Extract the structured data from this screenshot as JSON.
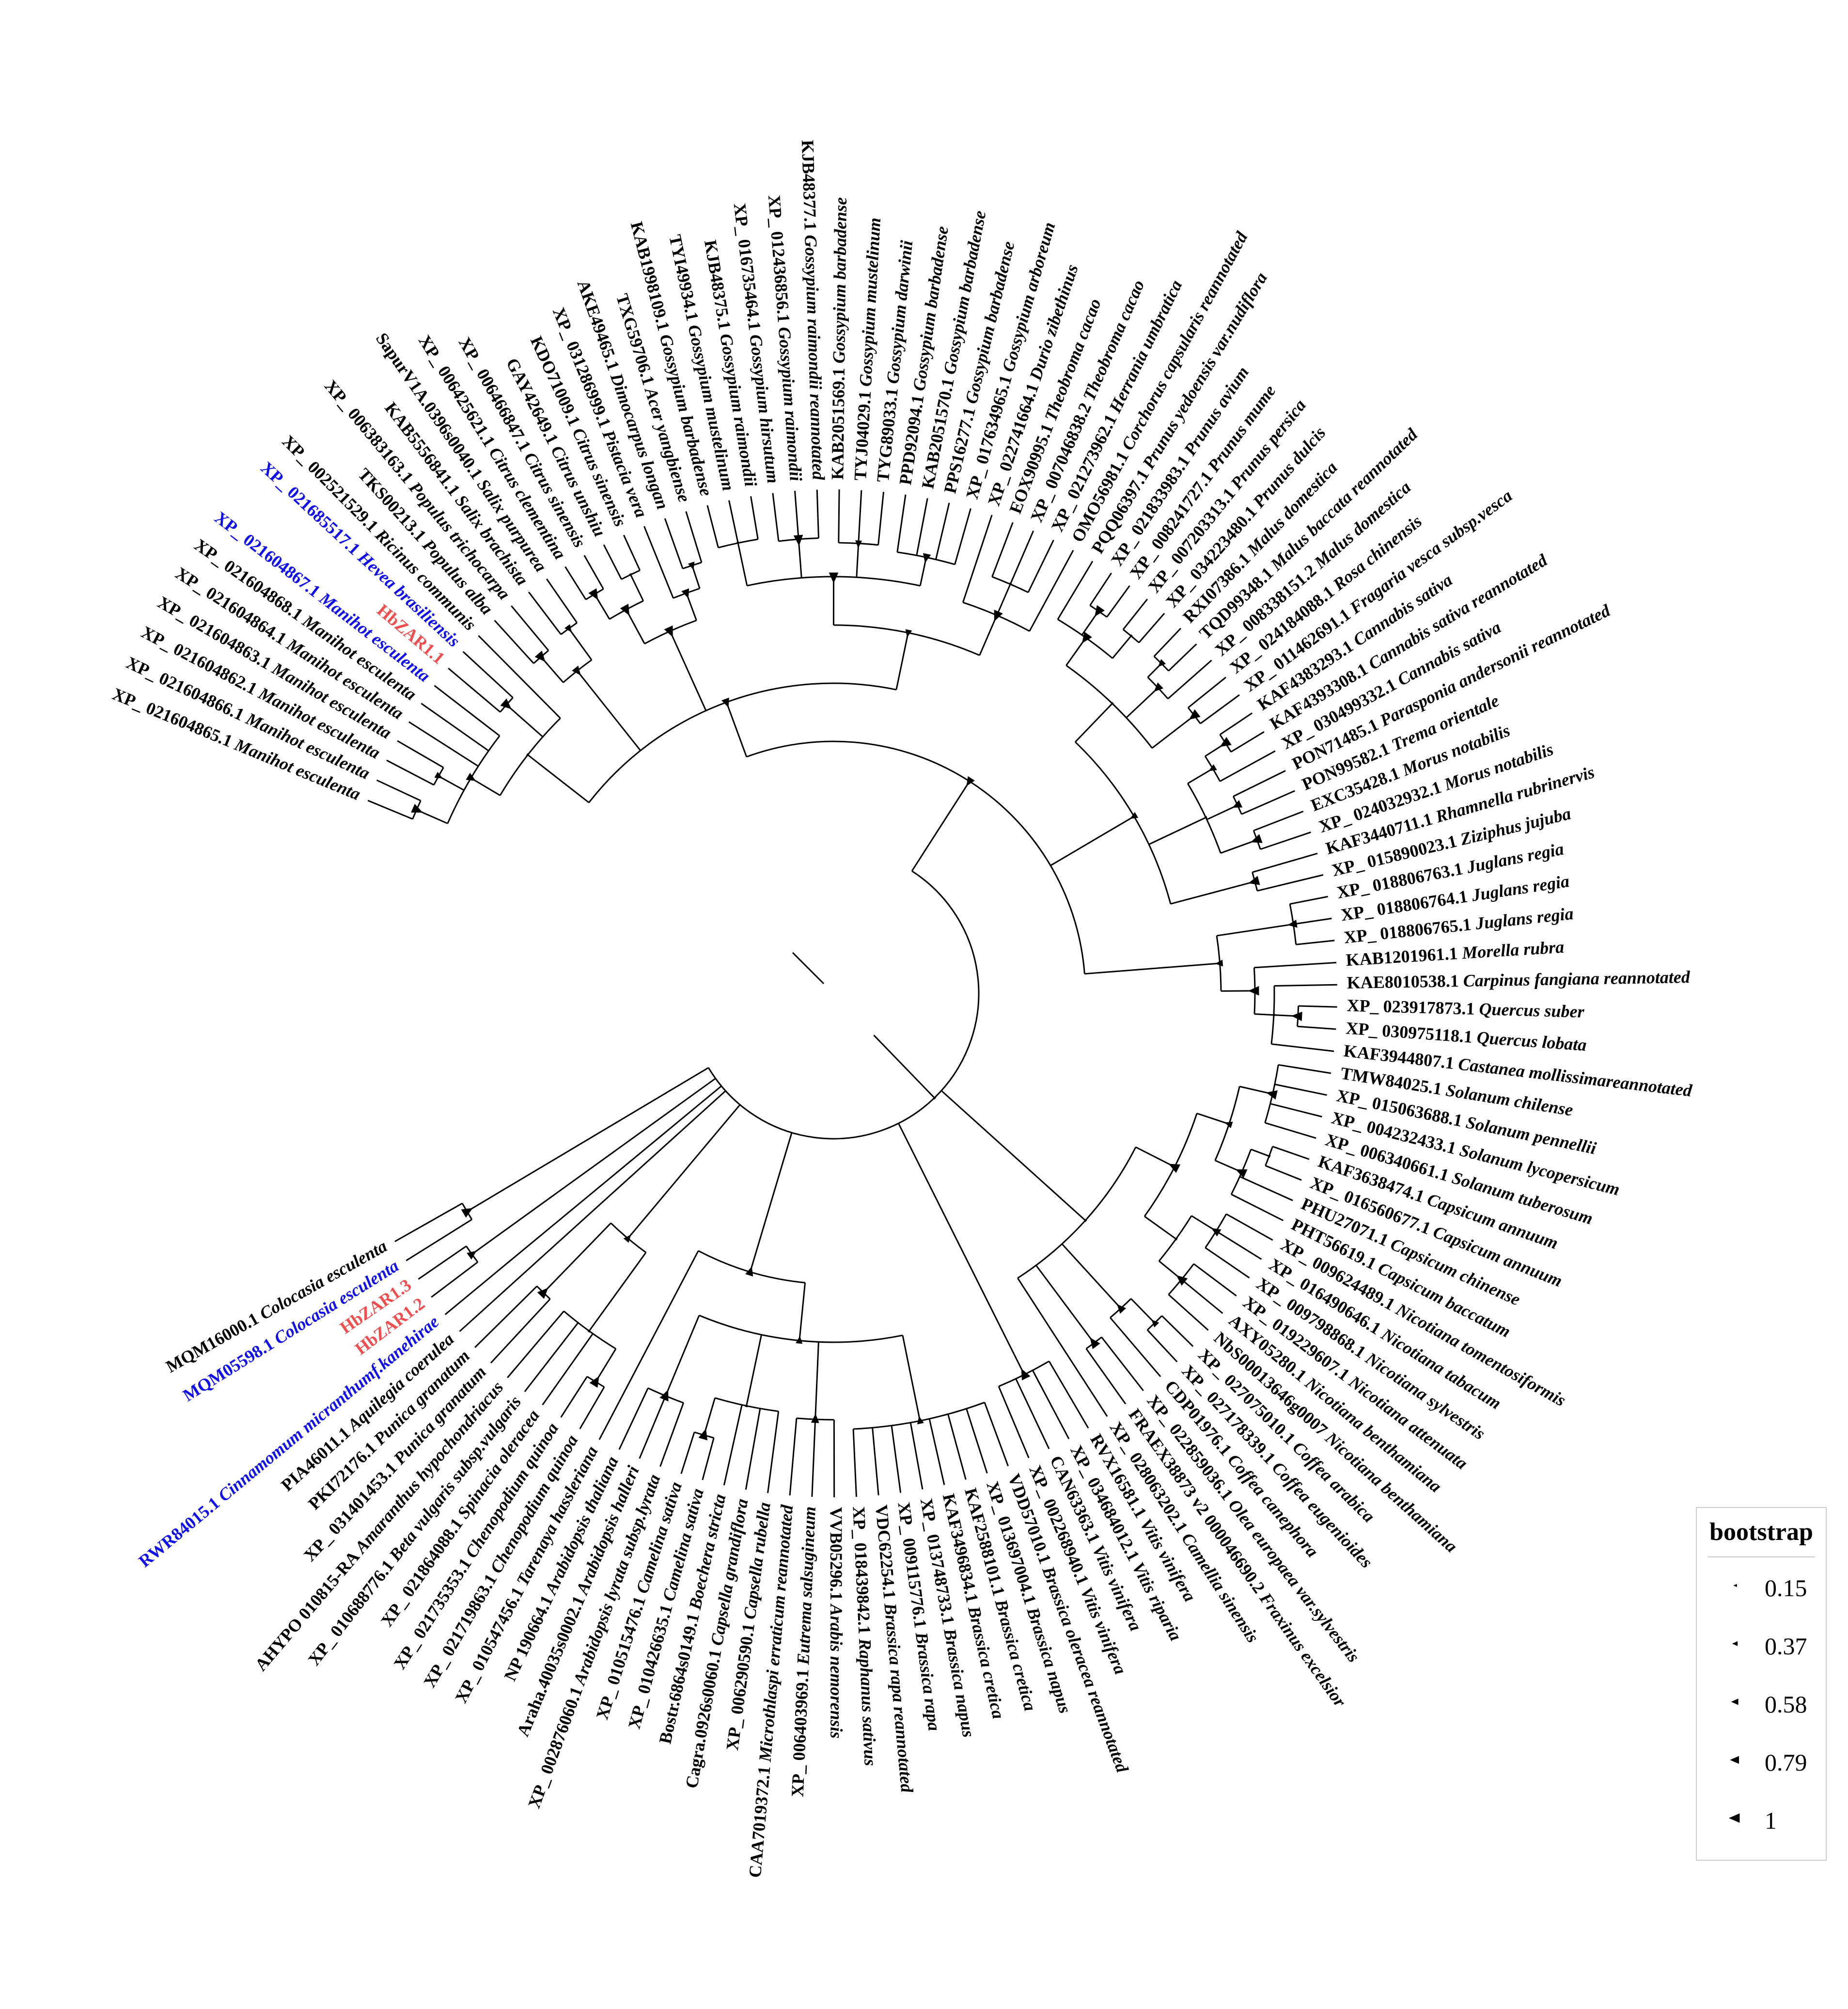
{
  "tree": {
    "colors": {
      "default": "#000000",
      "highlight_blue": "#1010ee",
      "highlight_red": "#f04e4e",
      "branch": "#000000"
    },
    "leaves": [
      {
        "acc": "XP_ 021604865.1",
        "sp": "Manihot esculenta",
        "color": "default"
      },
      {
        "acc": "XP_ 021604866.1",
        "sp": "Manihot esculenta",
        "color": "default"
      },
      {
        "acc": "XP_ 021604862.1",
        "sp": "Manihot esculenta",
        "color": "default"
      },
      {
        "acc": "XP_ 021604863.1",
        "sp": "Manihot esculenta",
        "color": "default"
      },
      {
        "acc": "XP_ 021604864.1",
        "sp": "Manihot esculenta",
        "color": "default"
      },
      {
        "acc": "XP_ 021604868.1",
        "sp": "Manihot esculenta",
        "color": "default"
      },
      {
        "acc": "XP_ 021604867.1",
        "sp": "Manihot esculenta",
        "color": "highlight_blue"
      },
      {
        "acc": "HbZAR1.1",
        "sp": "",
        "color": "highlight_red"
      },
      {
        "acc": "XP_ 021685517.1",
        "sp": "Hevea brasiliensis",
        "color": "highlight_blue"
      },
      {
        "acc": "XP_ 002521529.1",
        "sp": "Ricinus communis",
        "color": "default"
      },
      {
        "acc": "TKS00213.1",
        "sp": "Populus alba",
        "color": "default"
      },
      {
        "acc": "XP_ 006383163.1",
        "sp": "Populus trichocarpa",
        "color": "default"
      },
      {
        "acc": "KAB5556841.1",
        "sp": "Salix brachista",
        "color": "default"
      },
      {
        "acc": "SapurV1A.0396s0040.1",
        "sp": "Salix purpurea",
        "color": "default"
      },
      {
        "acc": "XP_ 006425621.1",
        "sp": "Citrus clementina",
        "color": "default"
      },
      {
        "acc": "XP_ 006466847.1",
        "sp": "Citrus sinensis",
        "color": "default"
      },
      {
        "acc": "GAY42649.1",
        "sp": "Citrus unshiu",
        "color": "default"
      },
      {
        "acc": "KDO71009.1",
        "sp": "Citrus sinensis",
        "color": "default"
      },
      {
        "acc": "XP_ 031286999.1",
        "sp": "Pistacia vera",
        "color": "default"
      },
      {
        "acc": "AKE49465.1",
        "sp": "Dimocarpus longan",
        "color": "default"
      },
      {
        "acc": "TXG59706.1",
        "sp": "Acer yangbiense",
        "color": "default"
      },
      {
        "acc": "KAB1998109.1",
        "sp": "Gossypium barbadense",
        "color": "default"
      },
      {
        "acc": "TYI49934.1",
        "sp": "Gossypium mustelinum",
        "color": "default"
      },
      {
        "acc": "KJB48375.1",
        "sp": "Gossypium raimondii",
        "color": "default"
      },
      {
        "acc": "XP_ 016735464.1",
        "sp": "Gossypium hirsutum",
        "color": "default"
      },
      {
        "acc": "XP_ 012436856.1",
        "sp": "Gossypium raimondii",
        "color": "default"
      },
      {
        "acc": "KJB48377.1",
        "sp": "Gossypium raimondii reannotated",
        "color": "default"
      },
      {
        "acc": "KAB2051569.1",
        "sp": "Gossypium barbadense",
        "color": "default"
      },
      {
        "acc": "TYJ04029.1",
        "sp": "Gossypium mustelinum",
        "color": "default"
      },
      {
        "acc": "TYG89033.1",
        "sp": "Gossypium darwinii",
        "color": "default"
      },
      {
        "acc": "PPD92094.1",
        "sp": "Gossypium barbadense",
        "color": "default"
      },
      {
        "acc": "KAB2051570.1",
        "sp": "Gossypium barbadense",
        "color": "default"
      },
      {
        "acc": "PPS16277.1",
        "sp": "Gossypium barbadense",
        "color": "default"
      },
      {
        "acc": "XP_ 017634965.1",
        "sp": "Gossypium arboreum",
        "color": "default"
      },
      {
        "acc": "XP_ 022741664.1",
        "sp": "Durio zibethinus",
        "color": "default"
      },
      {
        "acc": "EOX90995.1",
        "sp": "Theobroma cacao",
        "color": "default"
      },
      {
        "acc": "XP_ 007046838.2",
        "sp": "Theobroma cacao",
        "color": "default"
      },
      {
        "acc": "XP_ 021273962.1",
        "sp": "Herrania umbratica",
        "color": "default"
      },
      {
        "acc": "OMO56981.1",
        "sp": "Corchorus capsularis reannotated",
        "color": "default"
      },
      {
        "acc": "PQQ06397.1",
        "sp": "Prunus yedoensis var.nudiflora",
        "color": "default"
      },
      {
        "acc": "XP_ 021833983.1",
        "sp": "Prunus avium",
        "color": "default"
      },
      {
        "acc": "XP_ 008241727.1",
        "sp": "Prunus mume",
        "color": "default"
      },
      {
        "acc": "XP_ 007203313.1",
        "sp": "Prunus persica",
        "color": "default"
      },
      {
        "acc": "XP_ 034223480.1",
        "sp": "Prunus dulcis",
        "color": "default"
      },
      {
        "acc": "RXI07386.1",
        "sp": "Malus domestica",
        "color": "default"
      },
      {
        "acc": "TQD99348.1",
        "sp": "Malus baccata reannotated",
        "color": "default"
      },
      {
        "acc": "XP_ 008338151.2",
        "sp": "Malus domestica",
        "color": "default"
      },
      {
        "acc": "XP_ 024184088.1",
        "sp": "Rosa chinensis",
        "color": "default"
      },
      {
        "acc": "XP_ 011462691.1",
        "sp": "Fragaria vesca subsp.vesca",
        "color": "default"
      },
      {
        "acc": "KAF4383293.1",
        "sp": "Cannabis sativa",
        "color": "default"
      },
      {
        "acc": "KAF4393308.1",
        "sp": "Cannabis sativa reannotated",
        "color": "default"
      },
      {
        "acc": "XP_ 030499332.1",
        "sp": "Cannabis sativa",
        "color": "default"
      },
      {
        "acc": "PON71485.1",
        "sp": "Parasponia andersonii reannotated",
        "color": "default"
      },
      {
        "acc": "PON99582.1",
        "sp": "Trema orientale",
        "color": "default"
      },
      {
        "acc": "EXC35428.1",
        "sp": "Morus notabilis",
        "color": "default"
      },
      {
        "acc": "XP_ 024032932.1",
        "sp": "Morus notabilis",
        "color": "default"
      },
      {
        "acc": "KAF3440711.1",
        "sp": "Rhamnella rubrinervis",
        "color": "default"
      },
      {
        "acc": "XP_ 015890023.1",
        "sp": "Ziziphus jujuba",
        "color": "default"
      },
      {
        "acc": "XP_ 018806763.1",
        "sp": "Juglans regia",
        "color": "default"
      },
      {
        "acc": "XP_ 018806764.1",
        "sp": "Juglans regia",
        "color": "default"
      },
      {
        "acc": "XP_ 018806765.1",
        "sp": "Juglans regia",
        "color": "default"
      },
      {
        "acc": "KAB1201961.1",
        "sp": "Morella rubra",
        "color": "default"
      },
      {
        "acc": "KAE8010538.1",
        "sp": "Carpinus fangiana reannotated",
        "color": "default"
      },
      {
        "acc": "XP_ 023917873.1",
        "sp": "Quercus suber",
        "color": "default"
      },
      {
        "acc": "XP_ 030975118.1",
        "sp": "Quercus lobata",
        "color": "default"
      },
      {
        "acc": "KAF3944807.1",
        "sp": "Castanea mollissimareannotated",
        "color": "default"
      },
      {
        "acc": "TMW84025.1",
        "sp": "Solanum chilense",
        "color": "default"
      },
      {
        "acc": "XP_ 015063688.1",
        "sp": "Solanum pennellii",
        "color": "default"
      },
      {
        "acc": "XP_ 004232433.1",
        "sp": "Solanum lycopersicum",
        "color": "default"
      },
      {
        "acc": "XP_ 006340661.1",
        "sp": "Solanum tuberosum",
        "color": "default"
      },
      {
        "acc": "KAF3638474.1",
        "sp": "Capsicum annuum",
        "color": "default"
      },
      {
        "acc": "XP_ 016560677.1",
        "sp": "Capsicum annuum",
        "color": "default"
      },
      {
        "acc": "PHU27071.1",
        "sp": "Capsicum chinense",
        "color": "default"
      },
      {
        "acc": "PHT56619.1",
        "sp": "Capsicum baccatum",
        "color": "default"
      },
      {
        "acc": "XP_ 009624489.1",
        "sp": "Nicotiana tomentosiformis",
        "color": "default"
      },
      {
        "acc": "XP_ 016490646.1",
        "sp": "Nicotiana tabacum",
        "color": "default"
      },
      {
        "acc": "XP_ 009798868.1",
        "sp": "Nicotiana sylvestris",
        "color": "default"
      },
      {
        "acc": "XP_ 019229607.1",
        "sp": "Nicotiana attenuata",
        "color": "default"
      },
      {
        "acc": "AXY05280.1",
        "sp": "Nicotiana benthamiana",
        "color": "default"
      },
      {
        "acc": "NbS00013646g0007",
        "sp": "Nicotiana benthamiana",
        "color": "default"
      },
      {
        "acc": "XP_ 027075010.1",
        "sp": "Coffea arabica",
        "color": "default"
      },
      {
        "acc": "XP_ 027178339.1",
        "sp": "Coffea eugenioides",
        "color": "default"
      },
      {
        "acc": "CDP01976.1",
        "sp": "Coffea canephora",
        "color": "default"
      },
      {
        "acc": "XP_ 022859036.1",
        "sp": "Olea europaea var.sylvestris",
        "color": "default"
      },
      {
        "acc": "FRAEX38873 v2 000046690.2",
        "sp": "Fraxinus excelsior",
        "color": "default"
      },
      {
        "acc": "XP_ 028063202.1",
        "sp": "Camellia sinensis",
        "color": "default"
      },
      {
        "acc": "RVX16581.1",
        "sp": "Vitis vinifera",
        "color": "default"
      },
      {
        "acc": "XP_ 034684012.1",
        "sp": "Vitis riparia",
        "color": "default"
      },
      {
        "acc": "CAN63363.1",
        "sp": "Vitis vinifera",
        "color": "default"
      },
      {
        "acc": "XP_ 002268940.1",
        "sp": "Vitis vinifera",
        "color": "default"
      },
      {
        "acc": "VDD57010.1",
        "sp": "Brassica oleracea reannotated",
        "color": "default"
      },
      {
        "acc": "XP_ 013697004.1",
        "sp": "Brassica napus",
        "color": "default"
      },
      {
        "acc": "KAF2588101.1",
        "sp": "Brassica cretica",
        "color": "default"
      },
      {
        "acc": "KAF3496834.1",
        "sp": "Brassica cretica",
        "color": "default"
      },
      {
        "acc": "XP_ 013748733.1",
        "sp": "Brassica napus",
        "color": "default"
      },
      {
        "acc": "XP_ 009115776.1",
        "sp": "Brassica rapa",
        "color": "default"
      },
      {
        "acc": "VDC62254.1",
        "sp": "Brassica rapa reannotated",
        "color": "default"
      },
      {
        "acc": "XP_ 018439842.1",
        "sp": "Raphanus sativus",
        "color": "default"
      },
      {
        "acc": "VVB05296.1",
        "sp": "Arabis nemorensis",
        "color": "default"
      },
      {
        "acc": "XP_ 006403969.1",
        "sp": "Eutrema salsugineum",
        "color": "default"
      },
      {
        "acc": "CAA7019372.1",
        "sp": "Microthlaspi erraticum reannotated",
        "color": "default"
      },
      {
        "acc": "XP_ 006290590.1",
        "sp": "Capsella rubella",
        "color": "default"
      },
      {
        "acc": "Cagra.0926s0060.1",
        "sp": "Capsella grandiflora",
        "color": "default"
      },
      {
        "acc": "Bostr.6864s0149.1",
        "sp": "Boechera stricta",
        "color": "default"
      },
      {
        "acc": "XP_ 010426635.1",
        "sp": "Camelina sativa",
        "color": "default"
      },
      {
        "acc": "XP_ 010515476.1",
        "sp": "Camelina sativa",
        "color": "default"
      },
      {
        "acc": "XP_ 002876060.1",
        "sp": "Arabidopsis lyrata subsp.lyrata",
        "color": "default"
      },
      {
        "acc": "Araha.40035s0002.1",
        "sp": "Arabidopsis halleri",
        "color": "default"
      },
      {
        "acc": "NP 190664.1",
        "sp": "Arabidopsis thaliana",
        "color": "default"
      },
      {
        "acc": "XP_ 010547456.1",
        "sp": "Tarenaya hassleriana",
        "color": "default"
      },
      {
        "acc": "XP_ 021719863.1",
        "sp": "Chenopodium quinoa",
        "color": "default"
      },
      {
        "acc": "XP_ 021735353.1",
        "sp": "Chenopodium quinoa",
        "color": "default"
      },
      {
        "acc": "XP_ 021864088.1",
        "sp": "Spinacia oleracea",
        "color": "default"
      },
      {
        "acc": "XP_ 010688776.1",
        "sp": "Beta vulgaris subsp.vulgaris",
        "color": "default"
      },
      {
        "acc": "AHYPO 010815-RA",
        "sp": "Amaranthus hypochondriacus",
        "color": "default"
      },
      {
        "acc": "XP_ 031401453.1",
        "sp": "Punica granatum",
        "color": "default"
      },
      {
        "acc": "PKI72176.1",
        "sp": "Punica granatum",
        "color": "default"
      },
      {
        "acc": "PIA46011.1",
        "sp": "Aquilegia coerulea",
        "color": "default"
      },
      {
        "acc": "RWR84015.1",
        "sp": "Cinnamomum micranthumf.kanehirae",
        "color": "highlight_blue"
      },
      {
        "acc": "HbZAR1.2",
        "sp": "",
        "color": "highlight_red"
      },
      {
        "acc": "HbZAR1.3",
        "sp": "",
        "color": "highlight_red"
      },
      {
        "acc": "MQM05598.1",
        "sp": "Colocasia esculenta",
        "color": "highlight_blue"
      },
      {
        "acc": "MQM16000.1",
        "sp": "Colocasia esculenta",
        "color": "default"
      }
    ]
  },
  "legend": {
    "title": "bootstrap",
    "items": [
      {
        "label": "0.15",
        "value": 0.15
      },
      {
        "label": "0.37",
        "value": 0.37
      },
      {
        "label": "0.58",
        "value": 0.58
      },
      {
        "label": "0.79",
        "value": 0.79
      },
      {
        "label": "1",
        "value": 1
      }
    ]
  }
}
